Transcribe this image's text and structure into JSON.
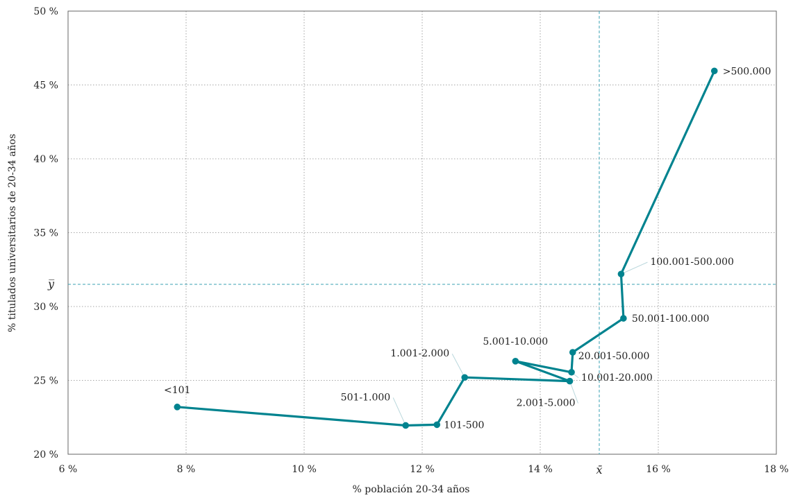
{
  "chart_data": {
    "type": "line",
    "xlabel": "% población 20-34 años",
    "ylabel": "% titulados universitarios de 20-34 años",
    "xlim": [
      6,
      18
    ],
    "ylim": [
      20,
      50
    ],
    "x_ticks": [
      6,
      8,
      10,
      12,
      14,
      16,
      18
    ],
    "y_ticks": [
      20,
      25,
      30,
      35,
      40,
      45,
      50
    ],
    "x_tick_labels": [
      "6 %",
      "8 %",
      "10 %",
      "12 %",
      "14 %",
      "16 %",
      "18 %"
    ],
    "y_tick_labels": [
      "20 %",
      "25 %",
      "30 %",
      "35 %",
      "40 %",
      "45 %",
      "50 %"
    ],
    "grid": true,
    "series": [
      {
        "color": "#00838f",
        "points": [
          {
            "label": "<101",
            "x": 7.85,
            "y": 23.2
          },
          {
            "label": "501-1.000",
            "x": 11.72,
            "y": 21.95
          },
          {
            "label": "101-500",
            "x": 12.25,
            "y": 22.0
          },
          {
            "label": "1.001-2.000",
            "x": 12.72,
            "y": 25.2
          },
          {
            "label": "2.001-5.000",
            "x": 14.5,
            "y": 24.95
          },
          {
            "label": "5.001-10.000",
            "x": 13.58,
            "y": 26.3
          },
          {
            "label": "10.001-20.000",
            "x": 14.53,
            "y": 25.55
          },
          {
            "label": "20.001-50.000",
            "x": 14.55,
            "y": 26.9
          },
          {
            "label": "50.001-100.000",
            "x": 15.41,
            "y": 29.2
          },
          {
            "label": "100.001-500.000",
            "x": 15.37,
            "y": 32.2
          },
          {
            "label": ">500.000",
            "x": 16.95,
            "y": 45.95
          }
        ]
      }
    ],
    "mean_lines": {
      "x": {
        "value": 15.0,
        "label": "x̄"
      },
      "y": {
        "value": 31.5,
        "label": "y̅"
      },
      "color": "#3aa1b3"
    }
  }
}
